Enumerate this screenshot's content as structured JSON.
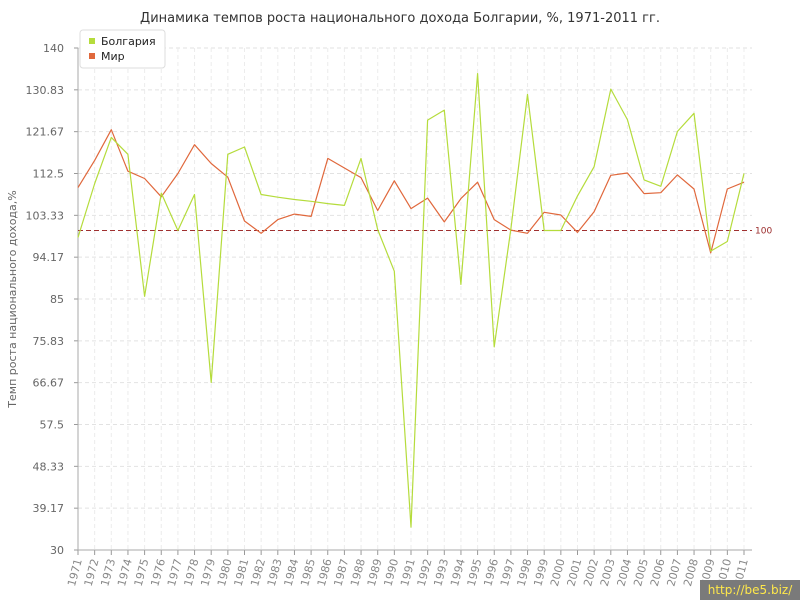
{
  "chart_data": {
    "type": "line",
    "title": "Динамика темпов роста национального дохода Болгарии, %, 1971-2011 гг.",
    "ylabel": "Темп роста национального дохода,%",
    "xlabel": "",
    "ylim": [
      30,
      140
    ],
    "yticks": [
      "30",
      "39.17",
      "48.33",
      "57.5",
      "66.67",
      "75.83",
      "85",
      "94.17",
      "103.33",
      "112.5",
      "121.67",
      "130.83",
      "140"
    ],
    "grid": true,
    "legend_position": "top-left",
    "reference_line": {
      "value": 100,
      "label": "100",
      "color": "#a03030"
    },
    "categories": [
      "1971",
      "1972",
      "1973",
      "1974",
      "1975",
      "1976",
      "1977",
      "1978",
      "1979",
      "1980",
      "1981",
      "1982",
      "1983",
      "1984",
      "1985",
      "1986",
      "1987",
      "1988",
      "1989",
      "1990",
      "1991",
      "1992",
      "1993",
      "1994",
      "1995",
      "1996",
      "1997",
      "1998",
      "1999",
      "2000",
      "2001",
      "2002",
      "2003",
      "2004",
      "2005",
      "2006",
      "2007",
      "2008",
      "2009",
      "2010",
      "2011"
    ],
    "series": [
      {
        "name": "Болгария",
        "color": "#b5dc3c",
        "values": [
          98.5,
          110.3,
          120.4,
          116.7,
          85.6,
          108.2,
          100.0,
          107.9,
          66.7,
          116.7,
          118.3,
          107.9,
          107.3,
          106.8,
          106.4,
          105.9,
          105.5,
          115.8,
          100.2,
          91.1,
          35.0,
          124.2,
          126.4,
          88.2,
          134.4,
          74.5,
          100.4,
          129.8,
          100.0,
          100.0,
          107.6,
          114.0,
          131.0,
          124.3,
          111.1,
          109.7,
          121.7,
          125.7,
          95.5,
          97.6,
          112.5
        ]
      },
      {
        "name": "Мир",
        "color": "#e0683c",
        "values": [
          109.4,
          115.4,
          122.1,
          113.0,
          111.4,
          107.4,
          112.5,
          118.8,
          114.7,
          111.7,
          102.1,
          99.4,
          102.4,
          103.6,
          103.1,
          115.8,
          113.7,
          111.6,
          104.4,
          110.9,
          104.8,
          107.1,
          101.9,
          107.0,
          110.6,
          102.4,
          100.1,
          99.4,
          104.0,
          103.4,
          99.6,
          104.1,
          112.1,
          112.6,
          108.1,
          108.3,
          112.2,
          109.1,
          95.1,
          109.1,
          110.6
        ]
      }
    ]
  },
  "watermark": "http://be5.biz/"
}
